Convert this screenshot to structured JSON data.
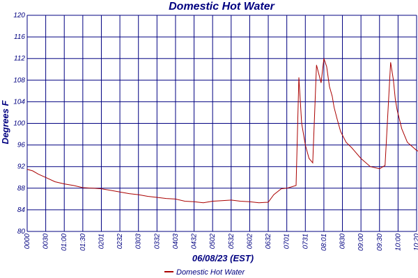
{
  "chart_data": {
    "type": "line",
    "title": "Domestic Hot Water",
    "xlabel": "06/08/23 (EST)",
    "ylabel": "Degrees F",
    "ylim": [
      80,
      120
    ],
    "y_ticks": [
      "80",
      "84",
      "88",
      "92",
      "96",
      "100",
      "104",
      "108",
      "112",
      "116",
      "120"
    ],
    "x_ticks": [
      "0000",
      "0030",
      "01:00",
      "01:30",
      "0201",
      "0232",
      "0303",
      "0332",
      "0403",
      "0432",
      "0502",
      "0532",
      "0602",
      "0632",
      "0701",
      "0731",
      "08:01",
      "0830",
      "09:00",
      "09:30",
      "10:00",
      "10:20"
    ],
    "grid": true,
    "legend_position": "bottom",
    "colors": {
      "series": "#aa0000",
      "grid": "#000080",
      "text": "#000080"
    },
    "series": [
      {
        "name": "Domestic Hot Water",
        "x_ticks_index": [
          0,
          0.3,
          0.6,
          1,
          1.5,
          2,
          2.5,
          3,
          3.5,
          4,
          4.5,
          5,
          5.5,
          6,
          6.5,
          7,
          7.5,
          8,
          8.5,
          9,
          9.5,
          10,
          10.5,
          11,
          11.5,
          12,
          12.5,
          13,
          13.3,
          13.7,
          14,
          14.3,
          14.5,
          14.65,
          14.8,
          15,
          15.2,
          15.4,
          15.6,
          15.85,
          16.0,
          16.15,
          16.3,
          16.45,
          16.55,
          16.7,
          16.9,
          17.2,
          17.5,
          18,
          18.5,
          19,
          19.3,
          19.6,
          19.75,
          19.85,
          19.95,
          20.2,
          20.5,
          21,
          21.5,
          21.9
        ],
        "values": [
          91.5,
          91.2,
          90.6,
          90.0,
          89.2,
          88.8,
          88.5,
          88.1,
          88.0,
          87.9,
          87.6,
          87.3,
          87.0,
          86.8,
          86.5,
          86.3,
          86.1,
          86.0,
          85.6,
          85.5,
          85.3,
          85.6,
          85.7,
          85.8,
          85.6,
          85.5,
          85.3,
          85.4,
          86.8,
          87.9,
          88.0,
          88.3,
          88.5,
          108.5,
          100.0,
          96.0,
          93.5,
          92.7,
          110.8,
          107.5,
          112.0,
          110.5,
          106.8,
          105.0,
          103.0,
          101.0,
          98.5,
          96.5,
          95.5,
          93.5,
          92.0,
          91.6,
          92.2,
          111.3,
          108.0,
          104.5,
          102.5,
          99.0,
          96.5,
          95.0,
          94.2,
          93.0
        ]
      }
    ]
  }
}
